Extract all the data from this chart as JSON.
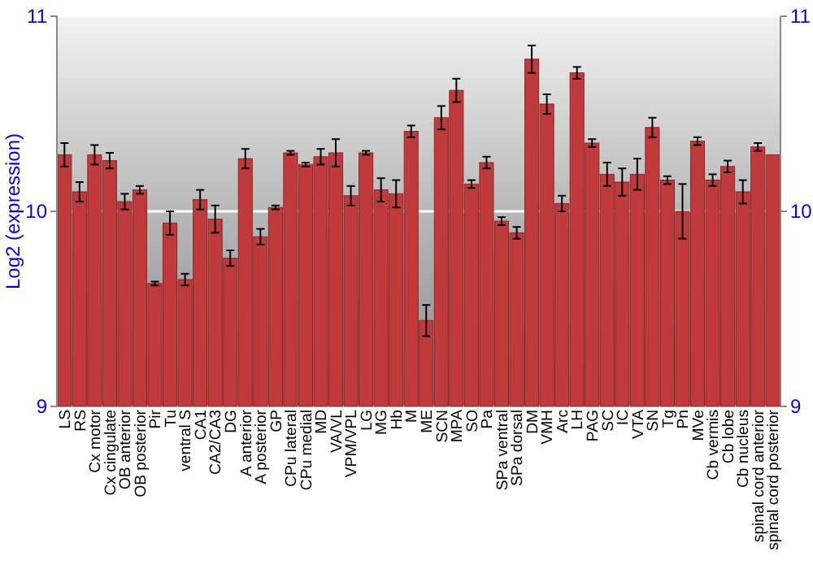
{
  "chart_data": {
    "type": "bar",
    "ylabel": "Log2 (expression)",
    "categories": [
      "LS",
      "RS",
      "Cx motor",
      "Cx cingulate",
      "OB anterior",
      "OB posterior",
      "Pir",
      "Tu",
      "ventral S",
      "CA1",
      "CA2/CA3",
      "DG",
      "A anterior",
      "A posterior",
      "GP",
      "CPu lateral",
      "CPu medial",
      "MD",
      "VA/VL",
      "VPM/VPL",
      "LG",
      "MG",
      "Hb",
      "M",
      "ME",
      "SCN",
      "MPA",
      "SO",
      "Pa",
      "SPa ventral",
      "SPa dorsal",
      "DM",
      "VMH",
      "Arc",
      "LH",
      "PAG",
      "SC",
      "IC",
      "VTA",
      "SN",
      "Tg",
      "Pn",
      "MVe",
      "Cb vermis",
      "Cb lobe",
      "Cb nucleus",
      "spinal cord anterior",
      "spinal cord posterior"
    ],
    "values": [
      10.29,
      10.1,
      10.29,
      10.26,
      10.05,
      10.11,
      9.63,
      9.94,
      9.65,
      10.06,
      9.96,
      9.76,
      10.27,
      9.87,
      10.02,
      10.3,
      10.24,
      10.28,
      10.3,
      10.08,
      10.3,
      10.11,
      10.09,
      10.41,
      9.44,
      10.48,
      10.62,
      10.14,
      10.25,
      9.95,
      9.89,
      10.78,
      10.55,
      10.04,
      10.71,
      10.35,
      10.19,
      10.15,
      10.19,
      10.43,
      10.16,
      10.0,
      10.36,
      10.16,
      10.23,
      10.1,
      10.33,
      10.29
    ],
    "errors": [
      0.06,
      0.05,
      0.05,
      0.04,
      0.04,
      0.02,
      0.01,
      0.06,
      0.03,
      0.05,
      0.07,
      0.04,
      0.05,
      0.04,
      0.01,
      0.01,
      0.01,
      0.04,
      0.07,
      0.05,
      0.01,
      0.06,
      0.07,
      0.03,
      0.08,
      0.06,
      0.06,
      0.02,
      0.03,
      0.02,
      0.03,
      0.07,
      0.05,
      0.04,
      0.03,
      0.02,
      0.06,
      0.07,
      0.08,
      0.05,
      0.02,
      0.14,
      0.02,
      0.03,
      0.03,
      0.06,
      0.02,
      null
    ],
    "color": "#c0393b",
    "ylim": [
      9,
      11
    ],
    "yticks": [
      9,
      10,
      11
    ],
    "y2lim": [
      9,
      11
    ],
    "y2ticks": [
      9,
      10,
      11
    ],
    "grid": "y"
  }
}
